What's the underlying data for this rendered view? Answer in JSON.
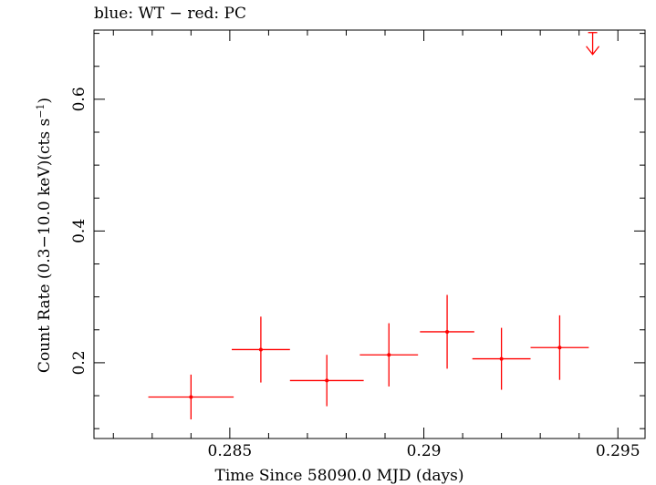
{
  "chart_data": {
    "type": "scatter",
    "title": "blue: WT − red: PC",
    "xlabel": "Time Since 58090.0 MJD (days)",
    "ylabel_main": "Count Rate (0.3−10.0 keV)(cts s",
    "ylabel_exp": "−1",
    "ylabel_close": ")",
    "xlim": [
      0.2815,
      0.2957
    ],
    "ylim": [
      0.085,
      0.705
    ],
    "xticks": [
      0.285,
      0.29,
      0.295
    ],
    "xtick_labels": [
      "0.285",
      "0.29",
      "0.295"
    ],
    "yticks": [
      0.2,
      0.4,
      0.6
    ],
    "ytick_labels": [
      "0.2",
      "0.4",
      "0.6"
    ],
    "series": [
      {
        "name": "PC",
        "color": "#ff0000",
        "points": [
          {
            "x": 0.284,
            "xerr": 0.0011,
            "y": 0.148,
            "yerr": 0.034
          },
          {
            "x": 0.2858,
            "xerr": 0.00075,
            "y": 0.22,
            "yerr": 0.05
          },
          {
            "x": 0.2875,
            "xerr": 0.00095,
            "y": 0.173,
            "yerr": 0.039
          },
          {
            "x": 0.2891,
            "xerr": 0.00075,
            "y": 0.212,
            "yerr": 0.048
          },
          {
            "x": 0.2906,
            "xerr": 0.0007,
            "y": 0.247,
            "yerr": 0.056
          },
          {
            "x": 0.292,
            "xerr": 0.00075,
            "y": 0.206,
            "yerr": 0.047
          },
          {
            "x": 0.2935,
            "xerr": 0.00075,
            "y": 0.223,
            "yerr": 0.049
          }
        ],
        "upper_limits": [
          {
            "x": 0.29435,
            "y": 0.668
          }
        ]
      },
      {
        "name": "WT",
        "color": "#0000ff",
        "points": []
      }
    ]
  }
}
